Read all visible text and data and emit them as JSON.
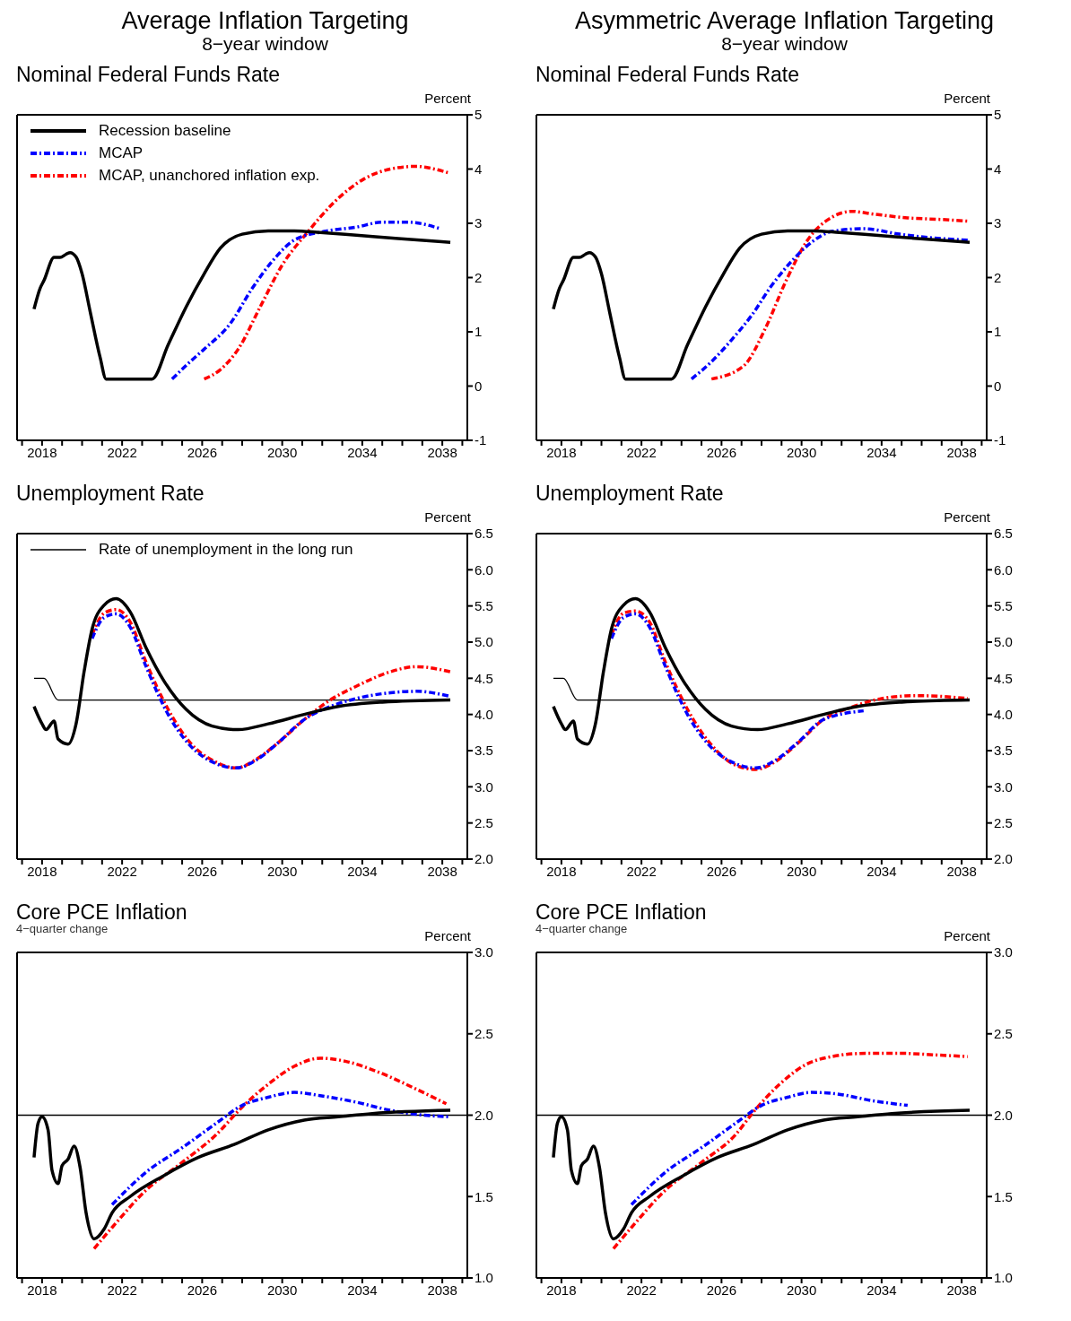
{
  "chart_data": [
    {
      "type": "other",
      "title": "Average Inflation Targeting",
      "subtitle": "8−year window"
    },
    {
      "type": "other",
      "title": "Asymmetric Average Inflation Targeting",
      "subtitle": "8−year window"
    },
    {
      "type": "line",
      "title": "Nominal Federal Funds Rate",
      "ylabel": "Percent",
      "legend": "top left",
      "xlim": [
        2016.75,
        2039.25
      ],
      "xticks": [
        {
          "value": 2017,
          "label": null
        },
        2018,
        {
          "value": 2019,
          "label": null
        },
        {
          "value": 2020,
          "label": null
        },
        {
          "value": 2021,
          "label": null
        },
        2022,
        {
          "value": 2023,
          "label": null
        },
        {
          "value": 2024,
          "label": null
        },
        {
          "value": 2025,
          "label": null
        },
        2026,
        {
          "value": 2027,
          "label": null
        },
        {
          "value": 2028,
          "label": null
        },
        {
          "value": 2029,
          "label": null
        },
        2030,
        {
          "value": 2031,
          "label": null
        },
        {
          "value": 2032,
          "label": null
        },
        {
          "value": 2033,
          "label": null
        },
        2034,
        {
          "value": 2035,
          "label": null
        },
        {
          "value": 2036,
          "label": null
        },
        {
          "value": 2037,
          "label": null
        },
        2038,
        {
          "value": 2039,
          "label": null
        }
      ],
      "ylim": [
        -1,
        5
      ],
      "yticks": [
        -1,
        0,
        1,
        2,
        3,
        4,
        5
      ],
      "series": [
        {
          "name": "Recession baseline",
          "color": "#000000",
          "line_style": "solid",
          "x": [
            2017.6,
            2017.9,
            2018.1,
            2018.6,
            2018.9,
            2019.2,
            2019.4,
            2019.7,
            2020.0,
            2020.4,
            2020.9,
            2021.2,
            2023.5,
            2024.3,
            2025.2,
            2026.1,
            2026.9,
            2028.0,
            2029.3,
            2030.6,
            2031.9,
            2033.7,
            2035.8,
            2038.4
          ],
          "values": [
            1.42,
            1.8,
            1.95,
            2.37,
            2.37,
            2.43,
            2.46,
            2.38,
            2.07,
            1.38,
            0.53,
            0.13,
            0.13,
            0.76,
            1.46,
            2.07,
            2.54,
            2.8,
            2.86,
            2.86,
            2.83,
            2.78,
            2.72,
            2.65
          ]
        },
        {
          "name": "MCAP",
          "color": "#0000ff",
          "line_style": "dashed",
          "x": [
            2024.5,
            2025.4,
            2026.1,
            2027.4,
            2028.5,
            2029.5,
            2030.6,
            2032.1,
            2033.7,
            2035.0,
            2036.3,
            2037.9
          ],
          "values": [
            0.13,
            0.45,
            0.68,
            1.15,
            1.8,
            2.3,
            2.69,
            2.85,
            2.93,
            3.02,
            3.02,
            2.9
          ]
        },
        {
          "name": "MCAP, unanchored inflation exp.",
          "color": "#ff0000",
          "line_style": "dashed",
          "x": [
            2026.1,
            2026.9,
            2027.8,
            2028.9,
            2030.0,
            2031.3,
            2032.6,
            2034.1,
            2035.4,
            2036.7,
            2037.6,
            2038.4
          ],
          "values": [
            0.13,
            0.3,
            0.68,
            1.46,
            2.23,
            2.85,
            3.39,
            3.82,
            4.0,
            4.05,
            4.0,
            3.92
          ]
        }
      ]
    },
    {
      "type": "line",
      "title": "Nominal Federal Funds Rate",
      "ylabel": "Percent",
      "xlim": [
        2016.75,
        2039.25
      ],
      "xticks": [
        {
          "value": 2017,
          "label": null
        },
        2018,
        {
          "value": 2019,
          "label": null
        },
        {
          "value": 2020,
          "label": null
        },
        {
          "value": 2021,
          "label": null
        },
        2022,
        {
          "value": 2023,
          "label": null
        },
        {
          "value": 2024,
          "label": null
        },
        {
          "value": 2025,
          "label": null
        },
        2026,
        {
          "value": 2027,
          "label": null
        },
        {
          "value": 2028,
          "label": null
        },
        {
          "value": 2029,
          "label": null
        },
        2030,
        {
          "value": 2031,
          "label": null
        },
        {
          "value": 2032,
          "label": null
        },
        {
          "value": 2033,
          "label": null
        },
        2034,
        {
          "value": 2035,
          "label": null
        },
        {
          "value": 2036,
          "label": null
        },
        {
          "value": 2037,
          "label": null
        },
        2038,
        {
          "value": 2039,
          "label": null
        }
      ],
      "ylim": [
        -1,
        5
      ],
      "yticks": [
        -1,
        0,
        1,
        2,
        3,
        4,
        5
      ],
      "series": [
        {
          "color": "#000000",
          "line_style": "solid",
          "x": [
            2017.6,
            2017.9,
            2018.1,
            2018.6,
            2018.9,
            2019.2,
            2019.4,
            2019.7,
            2020.0,
            2020.4,
            2020.9,
            2021.2,
            2023.5,
            2024.3,
            2025.2,
            2026.1,
            2026.9,
            2028.0,
            2029.3,
            2030.6,
            2031.9,
            2033.7,
            2035.8,
            2038.4
          ],
          "values": [
            1.42,
            1.8,
            1.95,
            2.37,
            2.37,
            2.43,
            2.46,
            2.38,
            2.07,
            1.38,
            0.53,
            0.13,
            0.13,
            0.76,
            1.46,
            2.07,
            2.54,
            2.8,
            2.86,
            2.86,
            2.83,
            2.78,
            2.72,
            2.65
          ]
        },
        {
          "color": "#0000ff",
          "line_style": "dashed",
          "x": [
            2024.5,
            2025.5,
            2026.5,
            2027.5,
            2028.5,
            2029.5,
            2030.5,
            2031.5,
            2033.1,
            2034.9,
            2036.6,
            2038.3
          ],
          "values": [
            0.13,
            0.45,
            0.85,
            1.3,
            1.85,
            2.3,
            2.65,
            2.85,
            2.9,
            2.8,
            2.73,
            2.69
          ]
        },
        {
          "color": "#ff0000",
          "line_style": "dashed",
          "x": [
            2025.5,
            2027.1,
            2028.2,
            2029.2,
            2030.3,
            2031.6,
            2032.5,
            2033.6,
            2035.3,
            2037.0,
            2038.3
          ],
          "values": [
            0.13,
            0.37,
            1.07,
            1.92,
            2.69,
            3.13,
            3.22,
            3.17,
            3.1,
            3.07,
            3.04
          ]
        }
      ]
    },
    {
      "type": "line",
      "title": "Unemployment Rate",
      "ylabel": "Percent",
      "legend": "top left",
      "xlim": [
        2016.75,
        2039.25
      ],
      "xticks": [
        {
          "value": 2017,
          "label": null
        },
        2018,
        {
          "value": 2019,
          "label": null
        },
        {
          "value": 2020,
          "label": null
        },
        {
          "value": 2021,
          "label": null
        },
        2022,
        {
          "value": 2023,
          "label": null
        },
        {
          "value": 2024,
          "label": null
        },
        {
          "value": 2025,
          "label": null
        },
        2026,
        {
          "value": 2027,
          "label": null
        },
        {
          "value": 2028,
          "label": null
        },
        {
          "value": 2029,
          "label": null
        },
        2030,
        {
          "value": 2031,
          "label": null
        },
        {
          "value": 2032,
          "label": null
        },
        {
          "value": 2033,
          "label": null
        },
        2034,
        {
          "value": 2035,
          "label": null
        },
        {
          "value": 2036,
          "label": null
        },
        {
          "value": 2037,
          "label": null
        },
        2038,
        {
          "value": 2039,
          "label": null
        }
      ],
      "ylim": [
        2,
        6.5
      ],
      "yticks": [
        {
          "value": 2,
          "label": "2.0"
        },
        2.5,
        {
          "value": 3,
          "label": "3.0"
        },
        3.5,
        {
          "value": 4,
          "label": "4.0"
        },
        4.5,
        {
          "value": 5,
          "label": "5.0"
        },
        5.5,
        {
          "value": 6,
          "label": "6.0"
        },
        6.5
      ],
      "series": [
        {
          "color": "#000000",
          "line_style": "solid",
          "x": [
            2017.6,
            2018.0,
            2018.2,
            2018.6,
            2018.8,
            2019.3,
            2019.7,
            2020.1,
            2020.5,
            2021.1,
            2021.7,
            2022.4,
            2023.2,
            2024.1,
            2025.2,
            2026.5,
            2027.8,
            2029.3,
            2031.1,
            2032.8,
            2035.0,
            2038.4
          ],
          "values": [
            4.11,
            3.87,
            3.79,
            3.91,
            3.66,
            3.59,
            3.87,
            4.59,
            5.18,
            5.51,
            5.6,
            5.42,
            4.92,
            4.46,
            4.07,
            3.84,
            3.79,
            3.87,
            4.0,
            4.11,
            4.17,
            4.2
          ]
        },
        {
          "color": "#0000ff",
          "line_style": "dashed",
          "x": [
            2020.5,
            2021.1,
            2021.7,
            2022.4,
            2023.2,
            2024.3,
            2025.4,
            2026.7,
            2027.7,
            2028.7,
            2029.8,
            2031.1,
            2032.4,
            2033.7,
            2035.4,
            2036.7,
            2038.4
          ],
          "values": [
            5.05,
            5.34,
            5.39,
            5.21,
            4.66,
            4.0,
            3.57,
            3.32,
            3.26,
            3.37,
            3.61,
            3.93,
            4.11,
            4.22,
            4.3,
            4.32,
            4.25
          ]
        },
        {
          "color": "#ff0000",
          "line_style": "dashed",
          "x": [
            2020.5,
            2021.1,
            2021.7,
            2022.4,
            2023.2,
            2024.3,
            2025.4,
            2026.7,
            2027.7,
            2028.7,
            2029.8,
            2031.1,
            2032.4,
            2033.7,
            2035.4,
            2036.7,
            2038.4
          ],
          "values": [
            5.1,
            5.4,
            5.45,
            5.28,
            4.72,
            4.07,
            3.61,
            3.34,
            3.26,
            3.38,
            3.61,
            3.93,
            4.2,
            4.39,
            4.59,
            4.66,
            4.59
          ]
        },
        {
          "name": "Rate of unemployment in the long run",
          "color": "#000000",
          "line_style": "solid",
          "x": [
            2017.6,
            2018.1,
            2018.8,
            2038.4
          ],
          "values": [
            4.5,
            4.5,
            4.2,
            4.2
          ]
        }
      ]
    },
    {
      "type": "line",
      "title": "Unemployment Rate",
      "ylabel": "Percent",
      "xlim": [
        2016.75,
        2039.25
      ],
      "xticks": [
        {
          "value": 2017,
          "label": null
        },
        2018,
        {
          "value": 2019,
          "label": null
        },
        {
          "value": 2020,
          "label": null
        },
        {
          "value": 2021,
          "label": null
        },
        2022,
        {
          "value": 2023,
          "label": null
        },
        {
          "value": 2024,
          "label": null
        },
        {
          "value": 2025,
          "label": null
        },
        2026,
        {
          "value": 2027,
          "label": null
        },
        {
          "value": 2028,
          "label": null
        },
        {
          "value": 2029,
          "label": null
        },
        2030,
        {
          "value": 2031,
          "label": null
        },
        {
          "value": 2032,
          "label": null
        },
        {
          "value": 2033,
          "label": null
        },
        2034,
        {
          "value": 2035,
          "label": null
        },
        {
          "value": 2036,
          "label": null
        },
        {
          "value": 2037,
          "label": null
        },
        2038,
        {
          "value": 2039,
          "label": null
        }
      ],
      "ylim": [
        2,
        6.5
      ],
      "yticks": [
        {
          "value": 2,
          "label": "2.0"
        },
        2.5,
        {
          "value": 3,
          "label": "3.0"
        },
        3.5,
        {
          "value": 4,
          "label": "4.0"
        },
        4.5,
        {
          "value": 5,
          "label": "5.0"
        },
        5.5,
        {
          "value": 6,
          "label": "6.0"
        },
        6.5
      ],
      "series": [
        {
          "color": "#000000",
          "line_style": "solid",
          "x": [
            2017.6,
            2018.0,
            2018.2,
            2018.6,
            2018.8,
            2019.3,
            2019.7,
            2020.1,
            2020.5,
            2021.1,
            2021.7,
            2022.4,
            2023.2,
            2024.1,
            2025.2,
            2026.5,
            2027.8,
            2029.3,
            2031.1,
            2032.8,
            2035.0,
            2038.4
          ],
          "values": [
            4.11,
            3.87,
            3.79,
            3.91,
            3.66,
            3.59,
            3.87,
            4.59,
            5.18,
            5.51,
            5.6,
            5.42,
            4.92,
            4.46,
            4.07,
            3.84,
            3.79,
            3.87,
            4.0,
            4.11,
            4.17,
            4.2
          ]
        },
        {
          "color": "#0000ff",
          "line_style": "dashed",
          "x": [
            2020.5,
            2021.1,
            2021.7,
            2022.4,
            2023.2,
            2024.3,
            2025.4,
            2026.7,
            2027.7,
            2028.7,
            2029.8,
            2031.1,
            2033.1
          ],
          "values": [
            5.05,
            5.34,
            5.39,
            5.21,
            4.66,
            4.0,
            3.57,
            3.32,
            3.26,
            3.37,
            3.61,
            3.93,
            4.05
          ]
        },
        {
          "color": "#ff0000",
          "line_style": "dashed",
          "x": [
            2020.5,
            2021.1,
            2021.7,
            2022.4,
            2023.2,
            2024.3,
            2025.4,
            2026.7,
            2027.7,
            2028.7,
            2029.8,
            2031.1,
            2032.5,
            2034.0,
            2035.7,
            2037.0,
            2038.3
          ],
          "values": [
            5.1,
            5.4,
            5.43,
            5.28,
            4.72,
            4.07,
            3.61,
            3.3,
            3.24,
            3.35,
            3.6,
            3.93,
            4.1,
            4.22,
            4.26,
            4.25,
            4.22
          ]
        },
        {
          "color": "#000000",
          "line_style": "solid",
          "x": [
            2017.6,
            2018.1,
            2018.8,
            2038.4
          ],
          "values": [
            4.5,
            4.5,
            4.2,
            4.2
          ]
        }
      ]
    },
    {
      "type": "line",
      "title": "Core PCE Inflation",
      "subtitle": "4−quarter change",
      "ylabel": "Percent",
      "xlim": [
        2016.75,
        2039.25
      ],
      "xticks": [
        {
          "value": 2017,
          "label": null
        },
        2018,
        {
          "value": 2019,
          "label": null
        },
        {
          "value": 2020,
          "label": null
        },
        {
          "value": 2021,
          "label": null
        },
        2022,
        {
          "value": 2023,
          "label": null
        },
        {
          "value": 2024,
          "label": null
        },
        {
          "value": 2025,
          "label": null
        },
        2026,
        {
          "value": 2027,
          "label": null
        },
        {
          "value": 2028,
          "label": null
        },
        {
          "value": 2029,
          "label": null
        },
        2030,
        {
          "value": 2031,
          "label": null
        },
        {
          "value": 2032,
          "label": null
        },
        {
          "value": 2033,
          "label": null
        },
        2034,
        {
          "value": 2035,
          "label": null
        },
        {
          "value": 2036,
          "label": null
        },
        {
          "value": 2037,
          "label": null
        },
        2038,
        {
          "value": 2039,
          "label": null
        }
      ],
      "ylim": [
        1,
        3
      ],
      "yticks": [
        {
          "value": 1,
          "label": "1.0"
        },
        1.5,
        {
          "value": 2,
          "label": "2.0"
        },
        2.5,
        {
          "value": 3,
          "label": "3.0"
        }
      ],
      "ref_lines": [
        {
          "axis": "y",
          "value": 2,
          "color": "#000000"
        }
      ],
      "series": [
        {
          "color": "#000000",
          "line_style": "solid",
          "x": [
            2017.6,
            2017.8,
            2018.0,
            2018.3,
            2018.5,
            2018.8,
            2019.0,
            2019.3,
            2019.6,
            2019.9,
            2020.2,
            2020.6,
            2021.1,
            2021.5,
            2022.4,
            2024.1,
            2025.8,
            2027.6,
            2029.3,
            2031.1,
            2032.8,
            2034.5,
            2038.4
          ],
          "values": [
            1.74,
            1.95,
            1.99,
            1.91,
            1.66,
            1.58,
            1.69,
            1.73,
            1.81,
            1.68,
            1.4,
            1.24,
            1.3,
            1.4,
            1.5,
            1.63,
            1.74,
            1.82,
            1.91,
            1.97,
            1.99,
            2.01,
            2.03
          ]
        },
        {
          "color": "#0000ff",
          "line_style": "dashed",
          "x": [
            2021.5,
            2023.2,
            2025.0,
            2026.7,
            2028.0,
            2029.3,
            2030.6,
            2031.9,
            2033.7,
            2035.4,
            2037.1,
            2038.4
          ],
          "values": [
            1.45,
            1.65,
            1.8,
            1.95,
            2.06,
            2.11,
            2.14,
            2.12,
            2.08,
            2.03,
            2.0,
            1.99
          ]
        },
        {
          "color": "#ff0000",
          "line_style": "dashed",
          "x": [
            2020.6,
            2021.5,
            2023.2,
            2025.0,
            2026.7,
            2028.0,
            2029.3,
            2030.6,
            2031.9,
            2033.2,
            2034.9,
            2036.7,
            2038.2
          ],
          "values": [
            1.18,
            1.31,
            1.54,
            1.71,
            1.88,
            2.05,
            2.19,
            2.3,
            2.35,
            2.33,
            2.26,
            2.16,
            2.07
          ]
        }
      ]
    },
    {
      "type": "line",
      "title": "Core PCE Inflation",
      "subtitle": "4−quarter change",
      "ylabel": "Percent",
      "xlim": [
        2016.75,
        2039.25
      ],
      "xticks": [
        {
          "value": 2017,
          "label": null
        },
        2018,
        {
          "value": 2019,
          "label": null
        },
        {
          "value": 2020,
          "label": null
        },
        {
          "value": 2021,
          "label": null
        },
        2022,
        {
          "value": 2023,
          "label": null
        },
        {
          "value": 2024,
          "label": null
        },
        {
          "value": 2025,
          "label": null
        },
        2026,
        {
          "value": 2027,
          "label": null
        },
        {
          "value": 2028,
          "label": null
        },
        {
          "value": 2029,
          "label": null
        },
        2030,
        {
          "value": 2031,
          "label": null
        },
        {
          "value": 2032,
          "label": null
        },
        {
          "value": 2033,
          "label": null
        },
        2034,
        {
          "value": 2035,
          "label": null
        },
        {
          "value": 2036,
          "label": null
        },
        {
          "value": 2037,
          "label": null
        },
        2038,
        {
          "value": 2039,
          "label": null
        }
      ],
      "ylim": [
        1,
        3
      ],
      "yticks": [
        {
          "value": 1,
          "label": "1.0"
        },
        1.5,
        {
          "value": 2,
          "label": "2.0"
        },
        2.5,
        {
          "value": 3,
          "label": "3.0"
        }
      ],
      "ref_lines": [
        {
          "axis": "y",
          "value": 2,
          "color": "#000000"
        }
      ],
      "series": [
        {
          "color": "#000000",
          "line_style": "solid",
          "x": [
            2017.6,
            2017.8,
            2018.0,
            2018.3,
            2018.5,
            2018.8,
            2019.0,
            2019.3,
            2019.6,
            2019.9,
            2020.2,
            2020.6,
            2021.1,
            2021.5,
            2022.4,
            2024.1,
            2025.8,
            2027.6,
            2029.3,
            2031.1,
            2032.8,
            2034.5,
            2038.4
          ],
          "values": [
            1.74,
            1.95,
            1.99,
            1.91,
            1.66,
            1.58,
            1.69,
            1.73,
            1.81,
            1.68,
            1.4,
            1.24,
            1.3,
            1.4,
            1.5,
            1.63,
            1.74,
            1.82,
            1.91,
            1.97,
            1.99,
            2.01,
            2.03
          ]
        },
        {
          "color": "#0000ff",
          "line_style": "dashed",
          "x": [
            2021.5,
            2023.2,
            2025.0,
            2026.7,
            2028.0,
            2029.3,
            2030.5,
            2031.8,
            2033.5,
            2035.3
          ],
          "values": [
            1.45,
            1.65,
            1.8,
            1.95,
            2.06,
            2.11,
            2.14,
            2.13,
            2.09,
            2.06
          ]
        },
        {
          "color": "#ff0000",
          "line_style": "dashed",
          "x": [
            2020.6,
            2021.5,
            2023.2,
            2025.0,
            2026.7,
            2027.6,
            2028.9,
            2030.2,
            2031.5,
            2033.2,
            2035.0,
            2036.7,
            2038.3
          ],
          "values": [
            1.18,
            1.31,
            1.54,
            1.71,
            1.88,
            2.02,
            2.19,
            2.31,
            2.36,
            2.38,
            2.38,
            2.37,
            2.36
          ]
        }
      ]
    }
  ]
}
